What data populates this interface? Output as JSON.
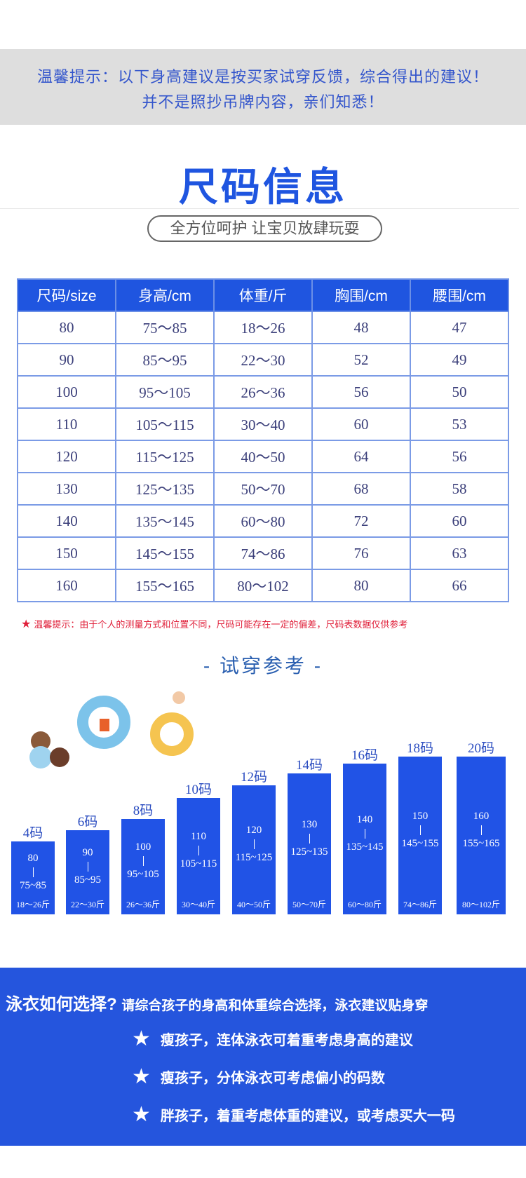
{
  "tip": {
    "line1": "温馨提示：以下身高建议是按买家试穿反馈，综合得出的建议！",
    "line2": "并不是照抄吊牌内容，亲们知悉！"
  },
  "title": "尺码信息",
  "slogan": "全方位呵护 让宝贝放肆玩耍",
  "table": {
    "headers": [
      "尺码/size",
      "身高/cm",
      "体重/斤",
      "胸围/cm",
      "腰围/cm"
    ],
    "rows": [
      [
        "80",
        "75～85",
        "18～26",
        "48",
        "47"
      ],
      [
        "90",
        "85～95",
        "22～30",
        "52",
        "49"
      ],
      [
        "100",
        "95～105",
        "26～36",
        "56",
        "50"
      ],
      [
        "110",
        "105～115",
        "30～40",
        "60",
        "53"
      ],
      [
        "120",
        "115～125",
        "40～50",
        "64",
        "56"
      ],
      [
        "130",
        "125～135",
        "50～70",
        "68",
        "58"
      ],
      [
        "140",
        "135～145",
        "60～80",
        "72",
        "60"
      ],
      [
        "150",
        "145～155",
        "74～86",
        "76",
        "63"
      ],
      [
        "160",
        "155～165",
        "80～102",
        "80",
        "66"
      ]
    ]
  },
  "note": "温馨提示：由于个人的测量方式和位置不同，尺码可能存在一定的偏差，尺码表数据仅供参考",
  "fit_title": "- 试穿参考 -",
  "bars": [
    {
      "label": "4码",
      "size": "80",
      "height": "75~85",
      "weight": "18～26斤"
    },
    {
      "label": "6码",
      "size": "90",
      "height": "85~95",
      "weight": "22～30斤"
    },
    {
      "label": "8码",
      "size": "100",
      "height": "95~105",
      "weight": "26～36斤"
    },
    {
      "label": "10码",
      "size": "110",
      "height": "105~115",
      "weight": "30～40斤"
    },
    {
      "label": "12码",
      "size": "120",
      "height": "115~125",
      "weight": "40～50斤"
    },
    {
      "label": "14码",
      "size": "130",
      "height": "125~135",
      "weight": "50～70斤"
    },
    {
      "label": "16码",
      "size": "140",
      "height": "135~145",
      "weight": "60～80斤"
    },
    {
      "label": "18码",
      "size": "150",
      "height": "145~155",
      "weight": "74～86斤"
    },
    {
      "label": "20码",
      "size": "160",
      "height": "155~165",
      "weight": "80～102斤"
    }
  ],
  "choose": {
    "heading": "泳衣如何选择?",
    "sub": "请综合孩子的身高和体重综合选择，泳衣建议贴身穿",
    "items": [
      "瘦孩子，连体泳衣可着重考虑身高的建议",
      "瘦孩子，分体泳衣可考虑偏小的码数",
      "胖孩子，着重考虑体重的建议，或考虑买大一码"
    ]
  },
  "colors": {
    "brand_blue": "#1f55e0",
    "note_red": "#e0203a",
    "band_gray": "#dedede"
  }
}
